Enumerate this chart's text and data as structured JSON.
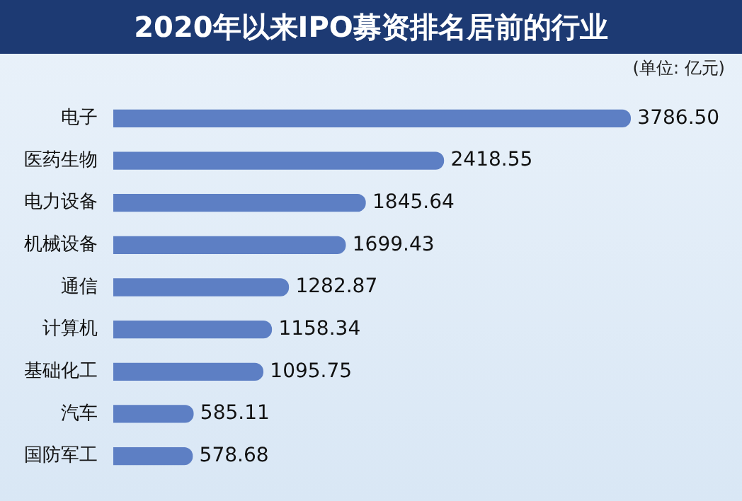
{
  "chart_data": {
    "type": "bar",
    "orientation": "horizontal",
    "title": "2020年以来IPO募资排名居前的行业",
    "annotations": [
      "(单位: 亿元)"
    ],
    "categories": [
      "电子",
      "医药生物",
      "电力设备",
      "机械设备",
      "通信",
      "计算机",
      "基础化工",
      "汽车",
      "国防军工"
    ],
    "values": [
      3786.5,
      2418.55,
      1845.64,
      1699.43,
      1282.87,
      1158.34,
      1095.75,
      585.11,
      578.68
    ],
    "value_labels": [
      "3786.50",
      "2418.55",
      "1845.64",
      "1699.43",
      "1282.87",
      "1158.34",
      "1095.75",
      "585.11",
      "578.68"
    ],
    "color": "#5d7fc4"
  }
}
